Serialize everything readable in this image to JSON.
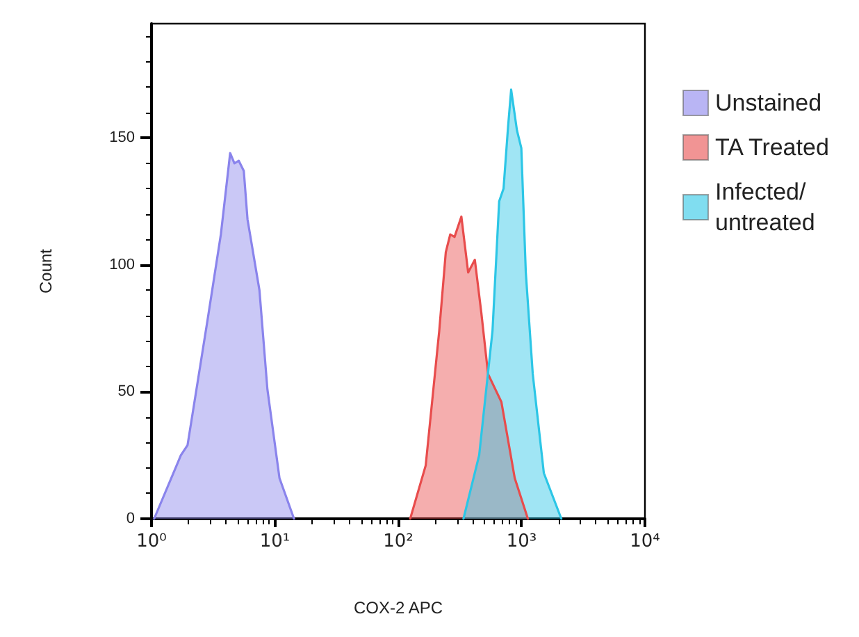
{
  "chart_data": {
    "type": "area",
    "xlabel": "COX-2 APC",
    "ylabel": "Count",
    "log": "x",
    "grid": false,
    "legend": "right",
    "marker": "none",
    "line_style": "solid",
    "xlim": [
      1,
      10000
    ],
    "xticks": [
      {
        "value": 1,
        "label": "10⁰"
      },
      {
        "value": 10,
        "label": "10¹"
      },
      {
        "value": 100,
        "label": "10²"
      },
      {
        "value": 1000,
        "label": "10³"
      },
      {
        "value": 10000,
        "label": "10⁴"
      }
    ],
    "ylim": [
      0,
      195
    ],
    "yticks": [
      0,
      50,
      100,
      150
    ],
    "series": [
      {
        "name": "Unstained",
        "color": "#8a84ec",
        "x": [
          1.05,
          1.73,
          1.96,
          2.84,
          3.65,
          4.34,
          4.7,
          5.1,
          5.6,
          6.0,
          7.5,
          8.7,
          10.9,
          14.3
        ],
        "values": [
          0,
          25,
          29,
          78,
          112,
          144,
          140,
          141,
          137,
          118,
          90,
          51,
          16,
          0
        ]
      },
      {
        "name": "TA Treated",
        "color": "#e84c4c",
        "x": [
          125,
          167,
          215,
          243,
          264,
          286,
          325,
          369,
          418,
          472,
          535,
          686,
          880,
          1125
        ],
        "values": [
          0,
          21,
          74,
          105,
          112,
          111,
          119,
          97,
          102,
          81,
          57,
          46,
          16,
          0
        ]
      },
      {
        "name": "Infected/ untreated",
        "color": "#2cc6e6",
        "x": [
          338,
          453,
          581,
          658,
          714,
          776,
          823,
          917,
          995,
          1082,
          1232,
          1515,
          2100
        ],
        "values": [
          0,
          25,
          74,
          125,
          130,
          154,
          169,
          153,
          146,
          97,
          57,
          18,
          0
        ]
      }
    ]
  }
}
